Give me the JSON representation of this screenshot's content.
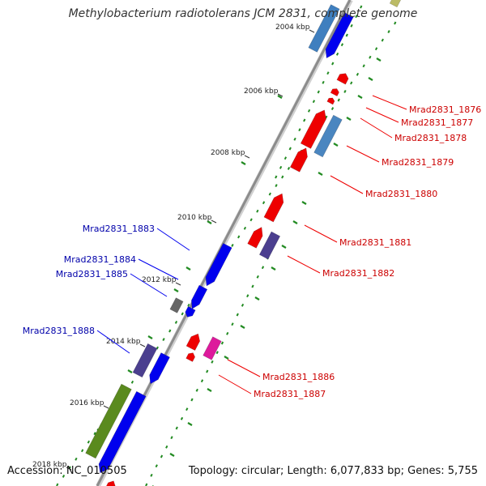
{
  "title": "Methylobacterium radiotolerans JCM 2831, complete genome",
  "footer": {
    "accession": "Accession: NC_010505",
    "topology": "Topology: circular; Length: 6,077,833 bp; Genes: 5,755"
  },
  "colors": {
    "backbone": "#8c8c8c",
    "forward_gene": "#0000ee",
    "reverse_gene": "#ee0000",
    "gc_dots": "#228b22",
    "label_forward": "#0000aa",
    "label_reverse": "#cc0000"
  },
  "ticks": [
    {
      "label": "2004 kbp"
    },
    {
      "label": "2006 kbp"
    },
    {
      "label": "2008 kbp"
    },
    {
      "label": "2010 kbp"
    },
    {
      "label": "2012 kbp"
    },
    {
      "label": "2014 kbp"
    },
    {
      "label": "2016 kbp"
    },
    {
      "label": "2018 kbp"
    }
  ],
  "gene_labels": [
    {
      "name": "Mrad2831_1876",
      "strand": "reverse"
    },
    {
      "name": "Mrad2831_1877",
      "strand": "reverse"
    },
    {
      "name": "Mrad2831_1878",
      "strand": "reverse"
    },
    {
      "name": "Mrad2831_1879",
      "strand": "reverse"
    },
    {
      "name": "Mrad2831_1880",
      "strand": "reverse"
    },
    {
      "name": "Mrad2831_1881",
      "strand": "reverse"
    },
    {
      "name": "Mrad2831_1882",
      "strand": "reverse"
    },
    {
      "name": "Mrad2831_1883",
      "strand": "forward"
    },
    {
      "name": "Mrad2831_1884",
      "strand": "forward"
    },
    {
      "name": "Mrad2831_1885",
      "strand": "forward"
    },
    {
      "name": "Mrad2831_1888",
      "strand": "forward"
    },
    {
      "name": "Mrad2831_1886",
      "strand": "reverse"
    },
    {
      "name": "Mrad2831_1887",
      "strand": "reverse"
    }
  ]
}
